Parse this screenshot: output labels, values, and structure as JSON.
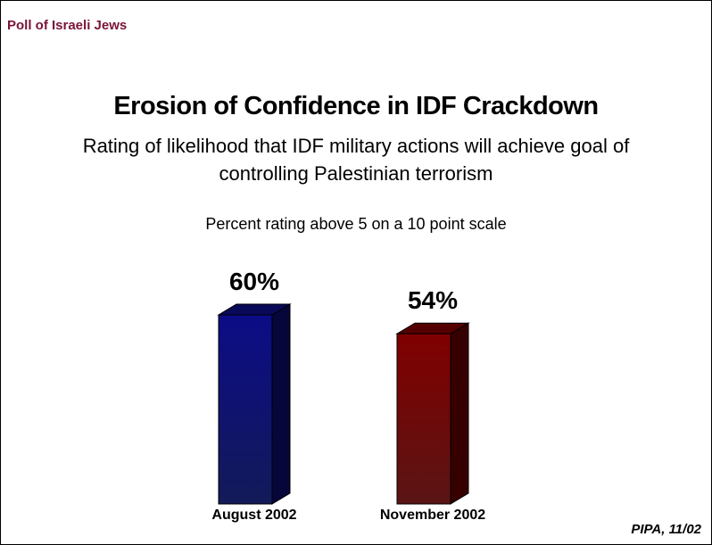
{
  "header": {
    "poll_label": "Poll of Israeli Jews"
  },
  "chart_data": {
    "type": "bar",
    "title": "Erosion of Confidence in IDF Crackdown",
    "subtitle": "Rating of likelihood that IDF military actions will achieve goal of controlling Palestinian terrorism",
    "note": "Percent rating above 5 on a 10 point scale",
    "categories": [
      "August 2002",
      "November 2002"
    ],
    "values": [
      60,
      54
    ],
    "value_labels": [
      "60%",
      "54%"
    ],
    "bar_colors": [
      "#0d0d80",
      "#7a0000"
    ],
    "ylim": [
      0,
      60
    ],
    "xlabel": "",
    "ylabel": "",
    "grid": false
  },
  "footer": {
    "source": "PIPA, 11/02"
  }
}
